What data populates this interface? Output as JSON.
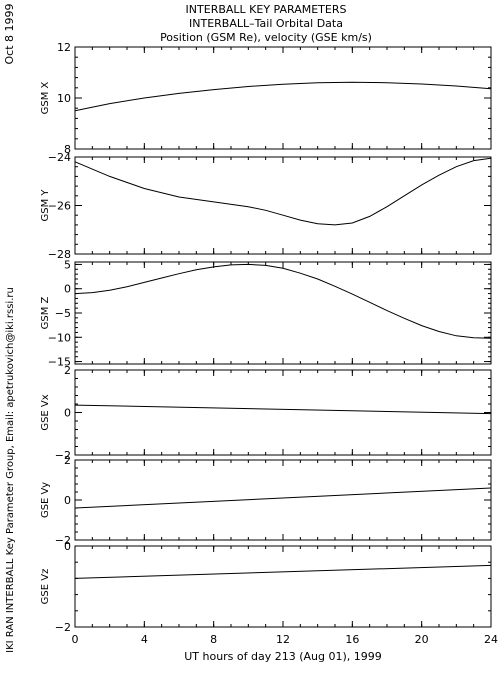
{
  "header": {
    "side_date": "Oct  8 1999",
    "side_credit": "IKI RAN INTERBALL Key Parameter Group, Email: apetrukovich@iki.rssi.ru",
    "title_lines": [
      "INTERBALL KEY PARAMETERS",
      "INTERBALL–Tail Orbital Data",
      "Position (GSM Re), velocity (GSE km/s)"
    ]
  },
  "colors": {
    "background": "#ffffff",
    "foreground": "#000000"
  },
  "chart_data": [
    {
      "type": "line",
      "ylabel": "GSM X",
      "xlim": [
        0,
        24
      ],
      "ylim": [
        8,
        12
      ],
      "yticks": [
        8,
        10,
        12
      ],
      "x": [
        0,
        2,
        4,
        6,
        8,
        10,
        12,
        14,
        16,
        18,
        20,
        22,
        24
      ],
      "series": [
        {
          "values": [
            9.5,
            9.78,
            10.0,
            10.18,
            10.33,
            10.45,
            10.54,
            10.6,
            10.62,
            10.6,
            10.55,
            10.47,
            10.36
          ]
        }
      ]
    },
    {
      "type": "line",
      "ylabel": "GSM Y",
      "xlim": [
        0,
        24
      ],
      "ylim": [
        -28,
        -24
      ],
      "yticks": [
        -28,
        -26,
        -24
      ],
      "x": [
        0,
        2,
        4,
        6,
        8,
        10,
        11,
        12,
        13,
        14,
        15,
        16,
        17,
        18,
        19,
        20,
        21,
        22,
        23,
        24
      ],
      "series": [
        {
          "values": [
            -24.2,
            -24.8,
            -25.3,
            -25.65,
            -25.85,
            -26.05,
            -26.2,
            -26.4,
            -26.6,
            -26.75,
            -26.8,
            -26.72,
            -26.45,
            -26.05,
            -25.6,
            -25.15,
            -24.75,
            -24.4,
            -24.15,
            -24.05
          ]
        }
      ]
    },
    {
      "type": "line",
      "ylabel": "GSM Z",
      "xlim": [
        0,
        24
      ],
      "ylim": [
        -15.5,
        5.5
      ],
      "yticks": [
        -15,
        -10,
        -5,
        0,
        5
      ],
      "x": [
        0,
        1,
        2,
        3,
        4,
        5,
        6,
        7,
        8,
        9,
        10,
        11,
        12,
        13,
        14,
        15,
        16,
        17,
        18,
        19,
        20,
        21,
        22,
        23,
        24
      ],
      "series": [
        {
          "values": [
            -1.0,
            -0.8,
            -0.3,
            0.4,
            1.3,
            2.2,
            3.1,
            3.9,
            4.5,
            4.9,
            5.0,
            4.8,
            4.2,
            3.2,
            2.0,
            0.5,
            -1.1,
            -2.8,
            -4.5,
            -6.1,
            -7.6,
            -8.8,
            -9.7,
            -10.1,
            -10.2
          ]
        }
      ]
    },
    {
      "type": "line",
      "ylabel": "GSE Vx",
      "xlim": [
        0,
        24
      ],
      "ylim": [
        -2,
        2
      ],
      "yticks": [
        -2,
        0,
        2
      ],
      "x": [
        0,
        24
      ],
      "series": [
        {
          "values": [
            0.35,
            -0.05
          ]
        }
      ]
    },
    {
      "type": "line",
      "ylabel": "GSE Vy",
      "xlim": [
        0,
        24
      ],
      "ylim": [
        -2,
        2
      ],
      "yticks": [
        -2,
        0,
        2
      ],
      "x": [
        0,
        24
      ],
      "series": [
        {
          "values": [
            -0.4,
            0.6
          ]
        }
      ]
    },
    {
      "type": "line",
      "ylabel": "GSE Vz",
      "xlim": [
        0,
        24
      ],
      "ylim": [
        -2,
        0
      ],
      "yticks": [
        -2,
        0
      ],
      "x": [
        0,
        24
      ],
      "series": [
        {
          "values": [
            -0.8,
            -0.48
          ]
        }
      ]
    }
  ],
  "x_axis": {
    "ticks": [
      0,
      4,
      8,
      12,
      16,
      20,
      24
    ],
    "minor_step": 1,
    "label": "UT hours of day 213 (Aug 01), 1999"
  }
}
